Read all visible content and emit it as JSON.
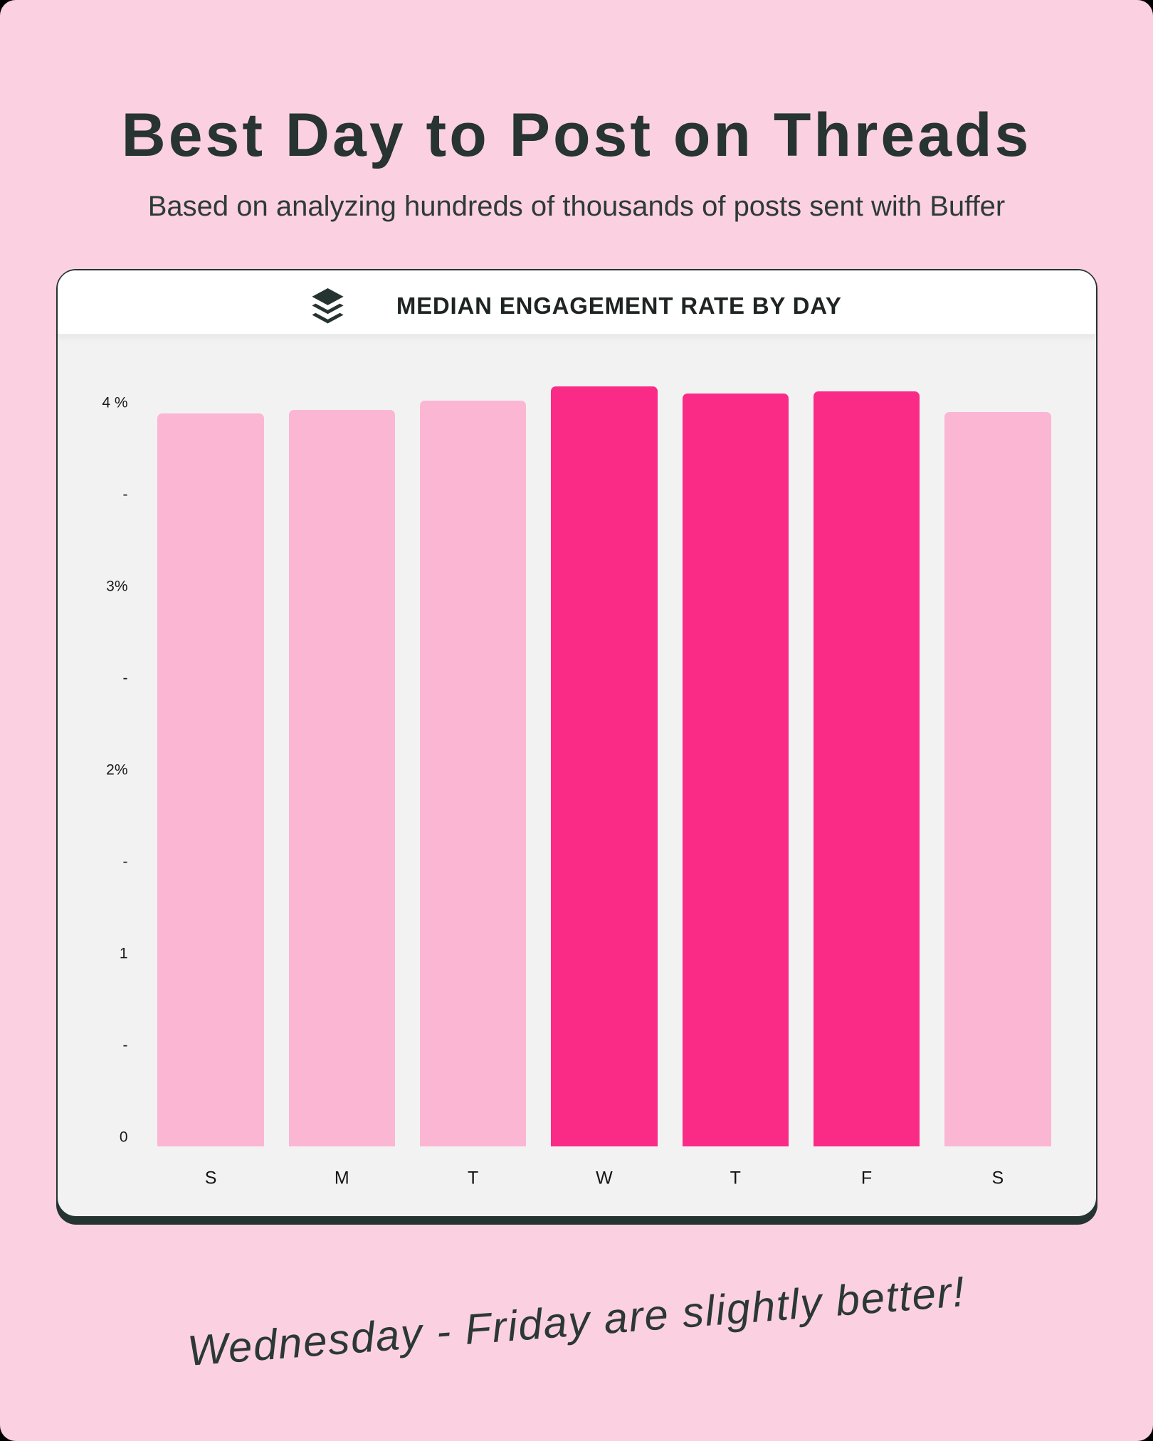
{
  "page": {
    "title": "Best Day to Post on Threads",
    "subtitle": "Based on analyzing hundreds of thousands of posts sent with Buffer",
    "background_color": "#FBD1E2",
    "outside_color": "#000000"
  },
  "card": {
    "title": "MEDIAN ENGAGEMENT RATE BY DAY",
    "logo": "buffer-logo-icon",
    "border_color": "#253431",
    "header_bg": "#FFFFFF",
    "body_bg": "#F3F2F2"
  },
  "chart_data": {
    "type": "bar",
    "title": "MEDIAN ENGAGEMENT RATE BY DAY",
    "categories": [
      "S",
      "M",
      "T",
      "W",
      "T",
      "F",
      "S"
    ],
    "values": [
      3.94,
      3.96,
      4.01,
      4.09,
      4.05,
      4.06,
      3.95
    ],
    "unit": "%",
    "highlighted": [
      false,
      false,
      false,
      true,
      true,
      true,
      false
    ],
    "y_axis_ticks_top_to_bottom": [
      "4 %",
      "-",
      "3%",
      "-",
      "2%",
      "-",
      "1",
      "-",
      "0"
    ],
    "ylim": [
      0,
      4.3
    ],
    "grid": false,
    "legend": false,
    "bar_color": "#FBB6D3",
    "bar_highlight_color": "#F92B87",
    "xlabel": "",
    "ylabel": ""
  },
  "annotation": {
    "text": "Wednesday - Friday are slightly better!"
  }
}
